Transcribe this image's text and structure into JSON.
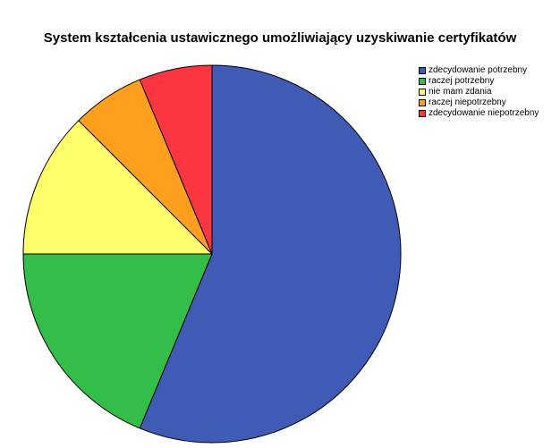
{
  "chart_data": {
    "type": "pie",
    "title": "System kształcenia ustawicznego umożliwiający uzyskiwanie certyfikatów",
    "categories": [
      "zdecydowanie potrzebny",
      "raczej potrzebny",
      "nie mam zdania",
      "raczej niepotrzebny",
      "zdecydowanie niepotrzebny"
    ],
    "values": [
      56.25,
      18.75,
      12.5,
      6.25,
      6.25
    ],
    "colors": [
      "#3f5bb5",
      "#32be48",
      "#ffff6b",
      "#ff9f1f",
      "#fb3640"
    ],
    "legend_position": "top-right",
    "start": "top",
    "direction": "clockwise"
  }
}
